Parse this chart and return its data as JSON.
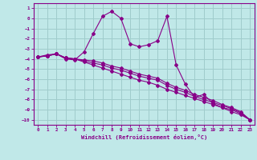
{
  "xlabel": "Windchill (Refroidissement éolien,°C)",
  "xlim": [
    -0.5,
    23.5
  ],
  "ylim": [
    -10.5,
    1.5
  ],
  "xticks": [
    0,
    1,
    2,
    3,
    4,
    5,
    6,
    7,
    8,
    9,
    10,
    11,
    12,
    13,
    14,
    15,
    16,
    17,
    18,
    19,
    20,
    21,
    22,
    23
  ],
  "yticks": [
    1,
    0,
    -1,
    -2,
    -3,
    -4,
    -5,
    -6,
    -7,
    -8,
    -9,
    -10
  ],
  "background_color": "#c0e8e8",
  "grid_color": "#a0cccc",
  "line_color": "#880088",
  "series": [
    {
      "x": [
        0,
        1,
        2,
        3,
        4,
        5,
        6,
        7,
        8,
        9,
        10,
        11,
        12,
        13,
        14,
        15,
        16,
        17,
        18,
        19,
        20,
        21,
        22,
        23
      ],
      "y": [
        -3.8,
        -3.6,
        -3.5,
        -4.0,
        -4.1,
        -3.3,
        -1.5,
        0.2,
        0.7,
        0.0,
        -2.5,
        -2.8,
        -2.6,
        -2.2,
        0.2,
        -4.6,
        -6.5,
        -7.8,
        -7.5,
        -8.4,
        -8.8,
        -9.2,
        -9.5,
        -10.0
      ]
    },
    {
      "x": [
        0,
        1,
        2,
        3,
        4,
        5,
        6,
        7,
        8,
        9,
        10,
        11,
        12,
        13,
        14,
        15,
        16,
        17,
        18,
        19,
        20,
        21,
        22,
        23
      ],
      "y": [
        -3.8,
        -3.7,
        -3.5,
        -3.9,
        -4.0,
        -4.1,
        -4.2,
        -4.4,
        -4.7,
        -4.9,
        -5.2,
        -5.5,
        -5.7,
        -5.9,
        -6.4,
        -6.8,
        -7.1,
        -7.5,
        -7.8,
        -8.1,
        -8.5,
        -8.8,
        -9.2,
        -10.0
      ]
    },
    {
      "x": [
        0,
        1,
        2,
        3,
        4,
        5,
        6,
        7,
        8,
        9,
        10,
        11,
        12,
        13,
        14,
        15,
        16,
        17,
        18,
        19,
        20,
        21,
        22,
        23
      ],
      "y": [
        -3.8,
        -3.7,
        -3.5,
        -3.9,
        -4.0,
        -4.2,
        -4.4,
        -4.6,
        -4.9,
        -5.1,
        -5.4,
        -5.7,
        -5.9,
        -6.1,
        -6.6,
        -7.0,
        -7.3,
        -7.7,
        -8.0,
        -8.3,
        -8.6,
        -8.9,
        -9.3,
        -10.0
      ]
    },
    {
      "x": [
        0,
        1,
        2,
        3,
        4,
        5,
        6,
        7,
        8,
        9,
        10,
        11,
        12,
        13,
        14,
        15,
        16,
        17,
        18,
        19,
        20,
        21,
        22,
        23
      ],
      "y": [
        -3.8,
        -3.7,
        -3.5,
        -3.9,
        -4.0,
        -4.3,
        -4.6,
        -4.9,
        -5.2,
        -5.5,
        -5.8,
        -6.1,
        -6.3,
        -6.6,
        -7.0,
        -7.3,
        -7.6,
        -7.9,
        -8.2,
        -8.5,
        -8.8,
        -9.0,
        -9.4,
        -10.0
      ]
    }
  ]
}
